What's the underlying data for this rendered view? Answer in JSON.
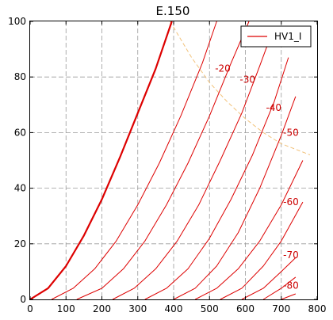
{
  "chart_data": {
    "type": "line",
    "title": "E.150",
    "xlabel": "",
    "ylabel": "",
    "xlim": [
      0,
      800
    ],
    "ylim": [
      0,
      100
    ],
    "xticks": [
      0,
      100,
      200,
      300,
      400,
      500,
      600,
      700,
      800
    ],
    "yticks": [
      0,
      20,
      40,
      60,
      80,
      100
    ],
    "grid": true,
    "legend": {
      "placement": "top-right",
      "entries": [
        "HV1_I"
      ]
    },
    "colors": {
      "curve": "#dd0000",
      "dissipation": "#f2c27a",
      "annotation": "#cc0000"
    },
    "series": [
      {
        "name": "HV1_I",
        "emphasis": true,
        "x": [
          0,
          50,
          100,
          150,
          200,
          250,
          300,
          350,
          395
        ],
        "y": [
          0,
          4,
          12,
          23,
          36,
          51,
          67,
          83,
          100
        ]
      },
      {
        "x": [
          60,
          120,
          180,
          240,
          300,
          360,
          420,
          480,
          520
        ],
        "y": [
          0,
          4,
          11,
          21,
          34,
          49,
          66,
          85,
          100
        ]
      },
      {
        "x": [
          130,
          200,
          260,
          320,
          380,
          440,
          500,
          560,
          610
        ],
        "y": [
          0,
          4,
          11,
          21,
          34,
          49,
          66,
          85,
          100
        ]
      },
      {
        "x": [
          230,
          290,
          350,
          410,
          470,
          530,
          590,
          640,
          680
        ],
        "y": [
          0,
          4,
          11,
          21,
          34,
          50,
          67,
          84,
          98
        ]
      },
      {
        "x": [
          320,
          380,
          440,
          500,
          560,
          620,
          680,
          720
        ],
        "y": [
          0,
          4,
          11,
          22,
          36,
          52,
          71,
          87
        ]
      },
      {
        "x": [
          400,
          460,
          520,
          580,
          640,
          700,
          740
        ],
        "y": [
          0,
          4,
          12,
          24,
          40,
          59,
          73
        ]
      },
      {
        "x": [
          460,
          520,
          580,
          640,
          700,
          760
        ],
        "y": [
          0,
          4,
          11,
          21,
          34,
          50
        ]
      },
      {
        "x": [
          530,
          590,
          650,
          700,
          760
        ],
        "y": [
          0,
          4,
          12,
          21,
          35
        ]
      },
      {
        "x": [
          590,
          650,
          700,
          740
        ],
        "y": [
          0,
          4,
          10,
          15
        ]
      },
      {
        "x": [
          650,
          700,
          740
        ],
        "y": [
          0,
          4,
          8
        ]
      },
      {
        "x": [
          700,
          740
        ],
        "y": [
          0,
          2
        ]
      }
    ],
    "dissipation_curve": {
      "x": [
        390,
        450,
        500,
        550,
        600,
        650,
        700,
        780
      ],
      "y": [
        100,
        87,
        78,
        71,
        65,
        60,
        56,
        52
      ]
    },
    "annotations": [
      {
        "text": "-20",
        "x": 537,
        "y": 83
      },
      {
        "text": "-30",
        "x": 606,
        "y": 79
      },
      {
        "text": "-40",
        "x": 679,
        "y": 69
      },
      {
        "text": "-50",
        "x": 727,
        "y": 60
      },
      {
        "text": "-60",
        "x": 727,
        "y": 35
      },
      {
        "text": "-70",
        "x": 727,
        "y": 16
      },
      {
        "text": "-80",
        "x": 727,
        "y": 5
      }
    ]
  }
}
